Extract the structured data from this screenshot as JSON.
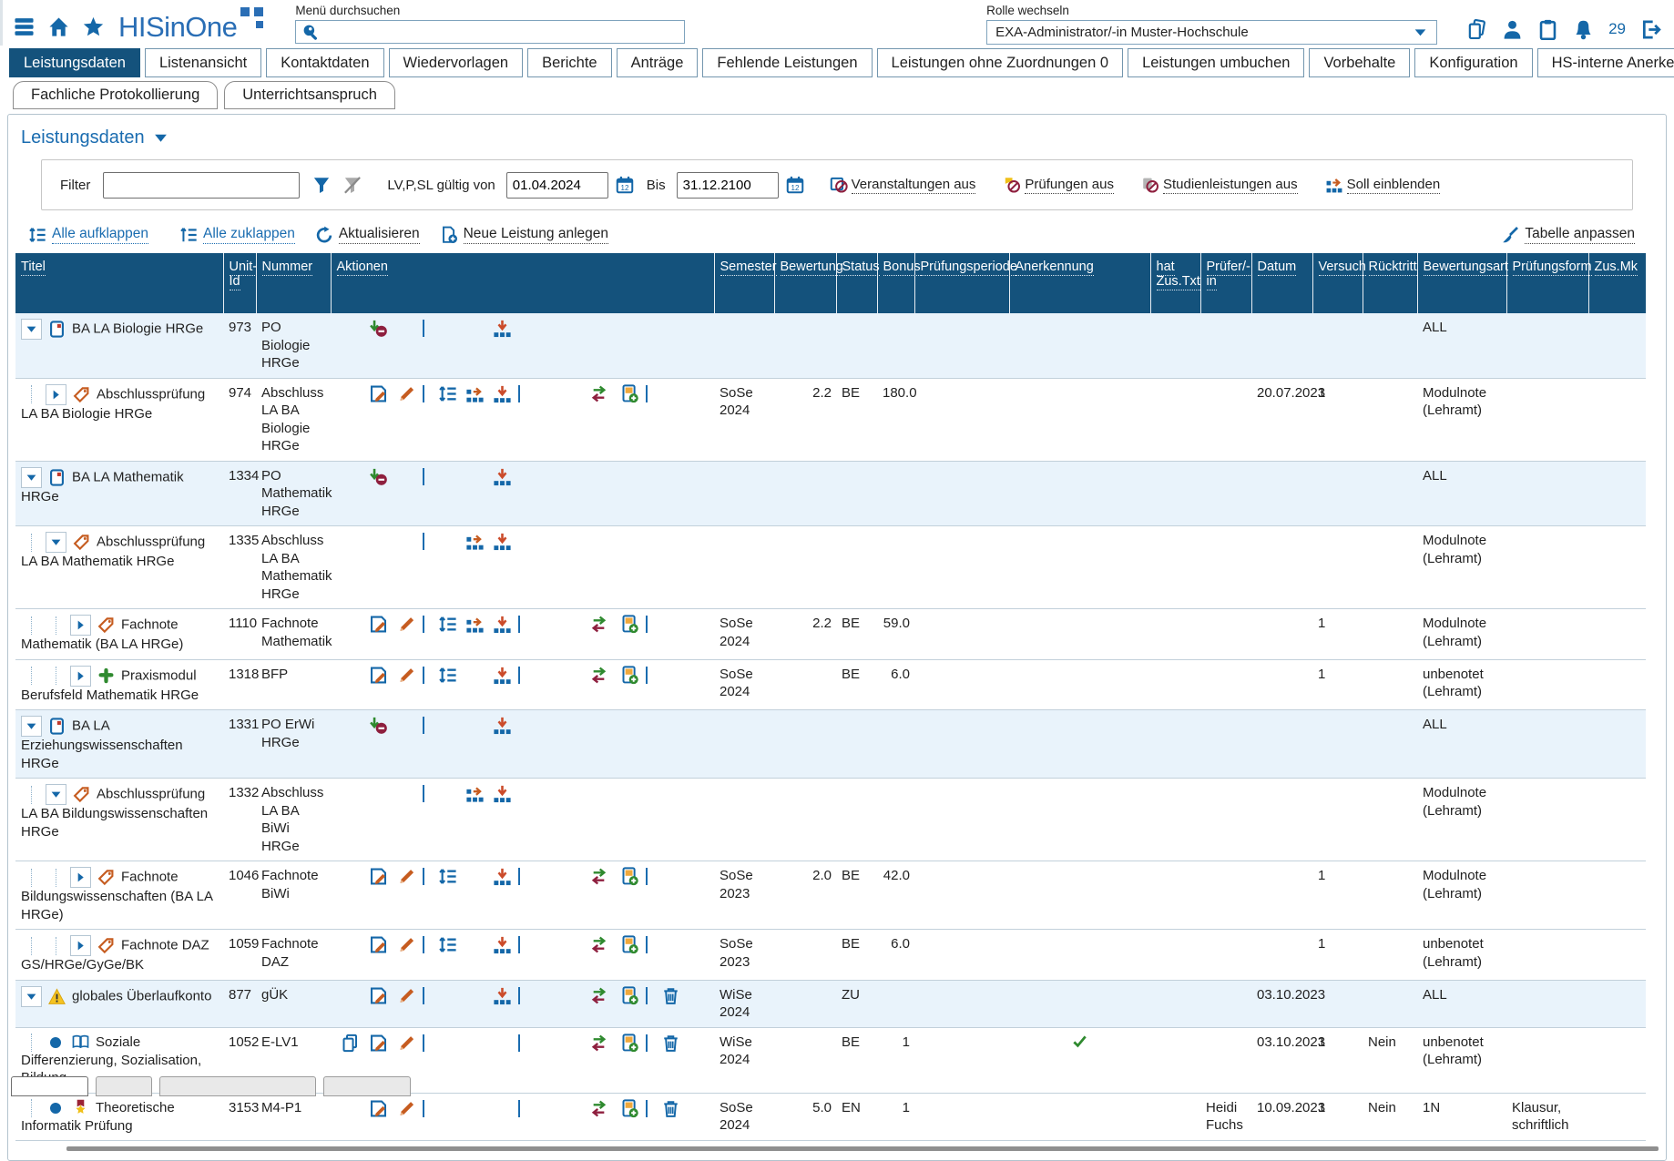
{
  "header": {
    "logo_text": "HISinOne",
    "search_label": "Menü durchsuchen",
    "search_value": "",
    "role_label": "Rolle wechseln",
    "role_value": "EXA-Administrator/-in Muster-Hochschule",
    "notification_count": "29"
  },
  "tabs_row1": [
    {
      "label": "Leistungsdaten",
      "active": true
    },
    {
      "label": "Listenansicht",
      "active": false
    },
    {
      "label": "Kontaktdaten",
      "active": false
    },
    {
      "label": "Wiedervorlagen",
      "active": false
    },
    {
      "label": "Berichte",
      "active": false
    },
    {
      "label": "Anträge",
      "active": false
    },
    {
      "label": "Fehlende Leistungen",
      "active": false
    },
    {
      "label": "Leistungen ohne Zuordnungen 0",
      "active": false
    },
    {
      "label": "Leistungen umbuchen",
      "active": false
    },
    {
      "label": "Vorbehalte",
      "active": false
    },
    {
      "label": "Konfiguration",
      "active": false
    },
    {
      "label": "HS-interne Anerkennungen",
      "active": false
    }
  ],
  "tabs_row2": [
    {
      "label": "Fachliche Protokollierung"
    },
    {
      "label": "Unterrichtsanspruch"
    }
  ],
  "page": {
    "section_title": "Leistungsdaten",
    "filter": {
      "label": "Filter",
      "value": "",
      "valid_label": "LV,P,SL gültig von",
      "valid_from": "01.04.2024",
      "bis_label": "Bis",
      "valid_to": "31.12.2100",
      "toggles": [
        {
          "icon": "event-off",
          "label": "Veranstaltungen aus"
        },
        {
          "icon": "exam-off",
          "label": "Prüfungen aus"
        },
        {
          "icon": "sl-off",
          "label": "Studienleistungen aus"
        },
        {
          "icon": "soll",
          "label": "Soll einblenden"
        }
      ]
    },
    "toolbar": {
      "expand_all": "Alle aufklappen",
      "collapse_all": "Alle zuklappen",
      "refresh": "Aktualisieren",
      "new_item": "Neue Leistung anlegen",
      "customize": "Tabelle anpassen"
    }
  },
  "table": {
    "columns": [
      "Titel",
      "Unit-Id",
      "Nummer",
      "Aktionen",
      "Semester",
      "Bewertung",
      "Status",
      "Bonus",
      "Prüfungsperiode",
      "Anerkennung",
      "hat Zus.Txt",
      "Prüfer/-in",
      "Datum",
      "Versuch",
      "Rücktritt",
      "Bewertungsart",
      "Prüfungsform",
      "Zus.Mk"
    ],
    "rows": [
      {
        "level": 0,
        "caret": "expanded",
        "icon": "po",
        "titel": "BA LA Biologie HRGe",
        "unit_id": "973",
        "nummer": "PO Biologie HRGe",
        "actions": [
          "",
          "unassign",
          "",
          "sep",
          "",
          "",
          "org-down",
          "",
          "",
          "",
          "",
          "",
          ""
        ],
        "semester": "",
        "bewertung": "",
        "status": "",
        "bonus": "",
        "periode": "",
        "anerkennung": "",
        "zustxt": "",
        "pruefer": "",
        "datum": "",
        "versuch": "",
        "ruecktritt": "",
        "bewertungsart": "ALL",
        "pruefungsform": "",
        "zusmk": "",
        "highlight": true
      },
      {
        "level": 1,
        "caret": "collapsed",
        "icon": "tag",
        "titel": "Abschlussprüfung LA BA Biologie HRGe",
        "unit_id": "974",
        "nummer": "Abschluss LA BA Biologie HRGe",
        "actions": [
          "",
          "edit",
          "pencil",
          "sep",
          "reorder",
          "org-right",
          "org-down",
          "sep",
          "",
          "swap",
          "doc-plus",
          "sep",
          ""
        ],
        "semester": "SoSe 2024",
        "bewertung": "2.2",
        "status": "BE",
        "bonus": "180.0",
        "periode": "",
        "anerkennung": "",
        "zustxt": "",
        "pruefer": "",
        "datum": "20.07.2023",
        "versuch": "1",
        "ruecktritt": "",
        "bewertungsart": "Modulnote (Lehramt)",
        "pruefungsform": "",
        "zusmk": "",
        "highlight": false
      },
      {
        "level": 0,
        "caret": "expanded",
        "icon": "po",
        "titel": "BA LA Mathematik HRGe",
        "unit_id": "1334",
        "nummer": "PO Mathematik HRGe",
        "actions": [
          "",
          "unassign",
          "",
          "sep",
          "",
          "",
          "org-down",
          "",
          "",
          "",
          "",
          "",
          ""
        ],
        "semester": "",
        "bewertung": "",
        "status": "",
        "bonus": "",
        "periode": "",
        "anerkennung": "",
        "zustxt": "",
        "pruefer": "",
        "datum": "",
        "versuch": "",
        "ruecktritt": "",
        "bewertungsart": "ALL",
        "pruefungsform": "",
        "zusmk": "",
        "highlight": true
      },
      {
        "level": 1,
        "caret": "expanded",
        "icon": "tag",
        "titel": "Abschlussprüfung LA BA Mathematik HRGe",
        "unit_id": "1335",
        "nummer": "Abschluss LA BA Mathematik HRGe",
        "actions": [
          "",
          "",
          "",
          "sep",
          "",
          "org-right",
          "org-down",
          "",
          "",
          "",
          "",
          "",
          ""
        ],
        "semester": "",
        "bewertung": "",
        "status": "",
        "bonus": "",
        "periode": "",
        "anerkennung": "",
        "zustxt": "",
        "pruefer": "",
        "datum": "",
        "versuch": "",
        "ruecktritt": "",
        "bewertungsart": "Modulnote (Lehramt)",
        "pruefungsform": "",
        "zusmk": "",
        "highlight": false
      },
      {
        "level": 2,
        "caret": "collapsed",
        "icon": "tag",
        "titel": "Fachnote Mathematik (BA LA HRGe)",
        "unit_id": "1110",
        "nummer": "Fachnote Mathematik",
        "actions": [
          "",
          "edit",
          "pencil",
          "sep",
          "reorder",
          "org-right",
          "org-down",
          "sep",
          "",
          "swap",
          "doc-plus",
          "sep",
          ""
        ],
        "semester": "SoSe 2024",
        "bewertung": "2.2",
        "status": "BE",
        "bonus": "59.0",
        "periode": "",
        "anerkennung": "",
        "zustxt": "",
        "pruefer": "",
        "datum": "",
        "versuch": "1",
        "ruecktritt": "",
        "bewertungsart": "Modulnote (Lehramt)",
        "pruefungsform": "",
        "zusmk": "",
        "highlight": false
      },
      {
        "level": 2,
        "caret": "collapsed",
        "icon": "puzzle",
        "titel": "Praxismodul Berufsfeld Mathematik HRGe",
        "unit_id": "1318",
        "nummer": "BFP",
        "actions": [
          "",
          "edit",
          "pencil",
          "sep",
          "reorder",
          "",
          "org-down",
          "sep",
          "",
          "swap",
          "doc-plus",
          "sep",
          ""
        ],
        "semester": "SoSe 2024",
        "bewertung": "",
        "status": "BE",
        "bonus": "6.0",
        "periode": "",
        "anerkennung": "",
        "zustxt": "",
        "pruefer": "",
        "datum": "",
        "versuch": "1",
        "ruecktritt": "",
        "bewertungsart": "unbenotet (Lehramt)",
        "pruefungsform": "",
        "zusmk": "",
        "highlight": false
      },
      {
        "level": 0,
        "caret": "expanded",
        "icon": "po",
        "titel": "BA LA Erziehungswissenschaften HRGe",
        "unit_id": "1331",
        "nummer": "PO ErWi HRGe",
        "actions": [
          "",
          "unassign",
          "",
          "sep",
          "",
          "",
          "org-down",
          "",
          "",
          "",
          "",
          "",
          ""
        ],
        "semester": "",
        "bewertung": "",
        "status": "",
        "bonus": "",
        "periode": "",
        "anerkennung": "",
        "zustxt": "",
        "pruefer": "",
        "datum": "",
        "versuch": "",
        "ruecktritt": "",
        "bewertungsart": "ALL",
        "pruefungsform": "",
        "zusmk": "",
        "highlight": true
      },
      {
        "level": 1,
        "caret": "expanded",
        "icon": "tag",
        "titel": "Abschlussprüfung LA BA Bildungswissenschaften HRGe",
        "unit_id": "1332",
        "nummer": "Abschluss LA BA BiWi HRGe",
        "actions": [
          "",
          "",
          "",
          "sep",
          "",
          "org-right",
          "org-down",
          "",
          "",
          "",
          "",
          "",
          ""
        ],
        "semester": "",
        "bewertung": "",
        "status": "",
        "bonus": "",
        "periode": "",
        "anerkennung": "",
        "zustxt": "",
        "pruefer": "",
        "datum": "",
        "versuch": "",
        "ruecktritt": "",
        "bewertungsart": "Modulnote (Lehramt)",
        "pruefungsform": "",
        "zusmk": "",
        "highlight": false
      },
      {
        "level": 2,
        "caret": "collapsed",
        "icon": "tag",
        "titel": "Fachnote Bildungswissenschaften (BA LA HRGe)",
        "unit_id": "1046",
        "nummer": "Fachnote BiWi",
        "actions": [
          "",
          "edit",
          "pencil",
          "sep",
          "reorder",
          "",
          "org-down",
          "sep",
          "",
          "swap",
          "doc-plus",
          "sep",
          ""
        ],
        "semester": "SoSe 2023",
        "bewertung": "2.0",
        "status": "BE",
        "bonus": "42.0",
        "periode": "",
        "anerkennung": "",
        "zustxt": "",
        "pruefer": "",
        "datum": "",
        "versuch": "1",
        "ruecktritt": "",
        "bewertungsart": "Modulnote (Lehramt)",
        "pruefungsform": "",
        "zusmk": "",
        "highlight": false
      },
      {
        "level": 2,
        "caret": "collapsed",
        "icon": "tag",
        "titel": "Fachnote DAZ GS/HRGe/GyGe/BK",
        "unit_id": "1059",
        "nummer": "Fachnote DAZ",
        "actions": [
          "",
          "edit",
          "pencil",
          "sep",
          "reorder",
          "",
          "org-down",
          "sep",
          "",
          "swap",
          "doc-plus",
          "sep",
          ""
        ],
        "semester": "SoSe 2023",
        "bewertung": "",
        "status": "BE",
        "bonus": "6.0",
        "periode": "",
        "anerkennung": "",
        "zustxt": "",
        "pruefer": "",
        "datum": "",
        "versuch": "1",
        "ruecktritt": "",
        "bewertungsart": "unbenotet (Lehramt)",
        "pruefungsform": "",
        "zusmk": "",
        "highlight": false
      },
      {
        "level": 0,
        "caret": "expanded",
        "icon": "warning",
        "titel": "globales Überlaufkonto",
        "unit_id": "877",
        "nummer": "gÜK",
        "actions": [
          "",
          "edit",
          "pencil",
          "sep",
          "",
          "",
          "org-down",
          "sep",
          "",
          "swap",
          "doc-plus",
          "sep",
          "trash"
        ],
        "semester": "WiSe 2024",
        "bewertung": "",
        "status": "ZU",
        "bonus": "",
        "periode": "",
        "anerkennung": "",
        "zustxt": "",
        "pruefer": "",
        "datum": "03.10.2023",
        "versuch": "",
        "ruecktritt": "",
        "bewertungsart": "ALL",
        "pruefungsform": "",
        "zusmk": "",
        "highlight": true
      },
      {
        "level": 1,
        "caret": "bullet",
        "icon": "book-open",
        "titel": "Soziale Differenzierung, Sozialisation, Bildung",
        "unit_id": "1052",
        "nummer": "E-LV1",
        "actions": [
          "copy",
          "edit",
          "pencil",
          "sep",
          "",
          "",
          "",
          "sep",
          "",
          "swap",
          "doc-plus",
          "sep",
          "trash"
        ],
        "semester": "WiSe 2024",
        "bewertung": "",
        "status": "BE",
        "bonus": "1",
        "periode": "",
        "anerkennung": "check",
        "zustxt": "",
        "pruefer": "",
        "datum": "03.10.2023",
        "versuch": "1",
        "ruecktritt": "Nein",
        "bewertungsart": "unbenotet (Lehramt)",
        "pruefungsform": "",
        "zusmk": "",
        "highlight": false
      },
      {
        "level": 1,
        "caret": "bullet",
        "icon": "medal",
        "titel": "Theoretische Informatik Prüfung",
        "unit_id": "3153",
        "nummer": "M4-P1",
        "actions": [
          "",
          "edit",
          "pencil",
          "sep",
          "",
          "",
          "",
          "sep",
          "",
          "swap",
          "doc-plus",
          "sep",
          "trash"
        ],
        "semester": "SoSe 2024",
        "bewertung": "5.0",
        "status": "EN",
        "bonus": "1",
        "periode": "",
        "anerkennung": "",
        "zustxt": "",
        "pruefer": "Heidi Fuchs",
        "datum": "10.09.2023",
        "versuch": "1",
        "ruecktritt": "Nein",
        "bewertungsart": "1N",
        "pruefungsform": "Klausur, schriftlich",
        "zusmk": "",
        "highlight": false
      }
    ]
  },
  "colors": {
    "header_blue": "#14527c",
    "accent_blue": "#1467a8",
    "link_blue": "#1a6cb0",
    "row_highlight": "#e9f3fb",
    "orange": "#c65c20",
    "green": "#2f8a2f",
    "dark_red": "#8e1f3e",
    "yellow": "#f0c019"
  }
}
